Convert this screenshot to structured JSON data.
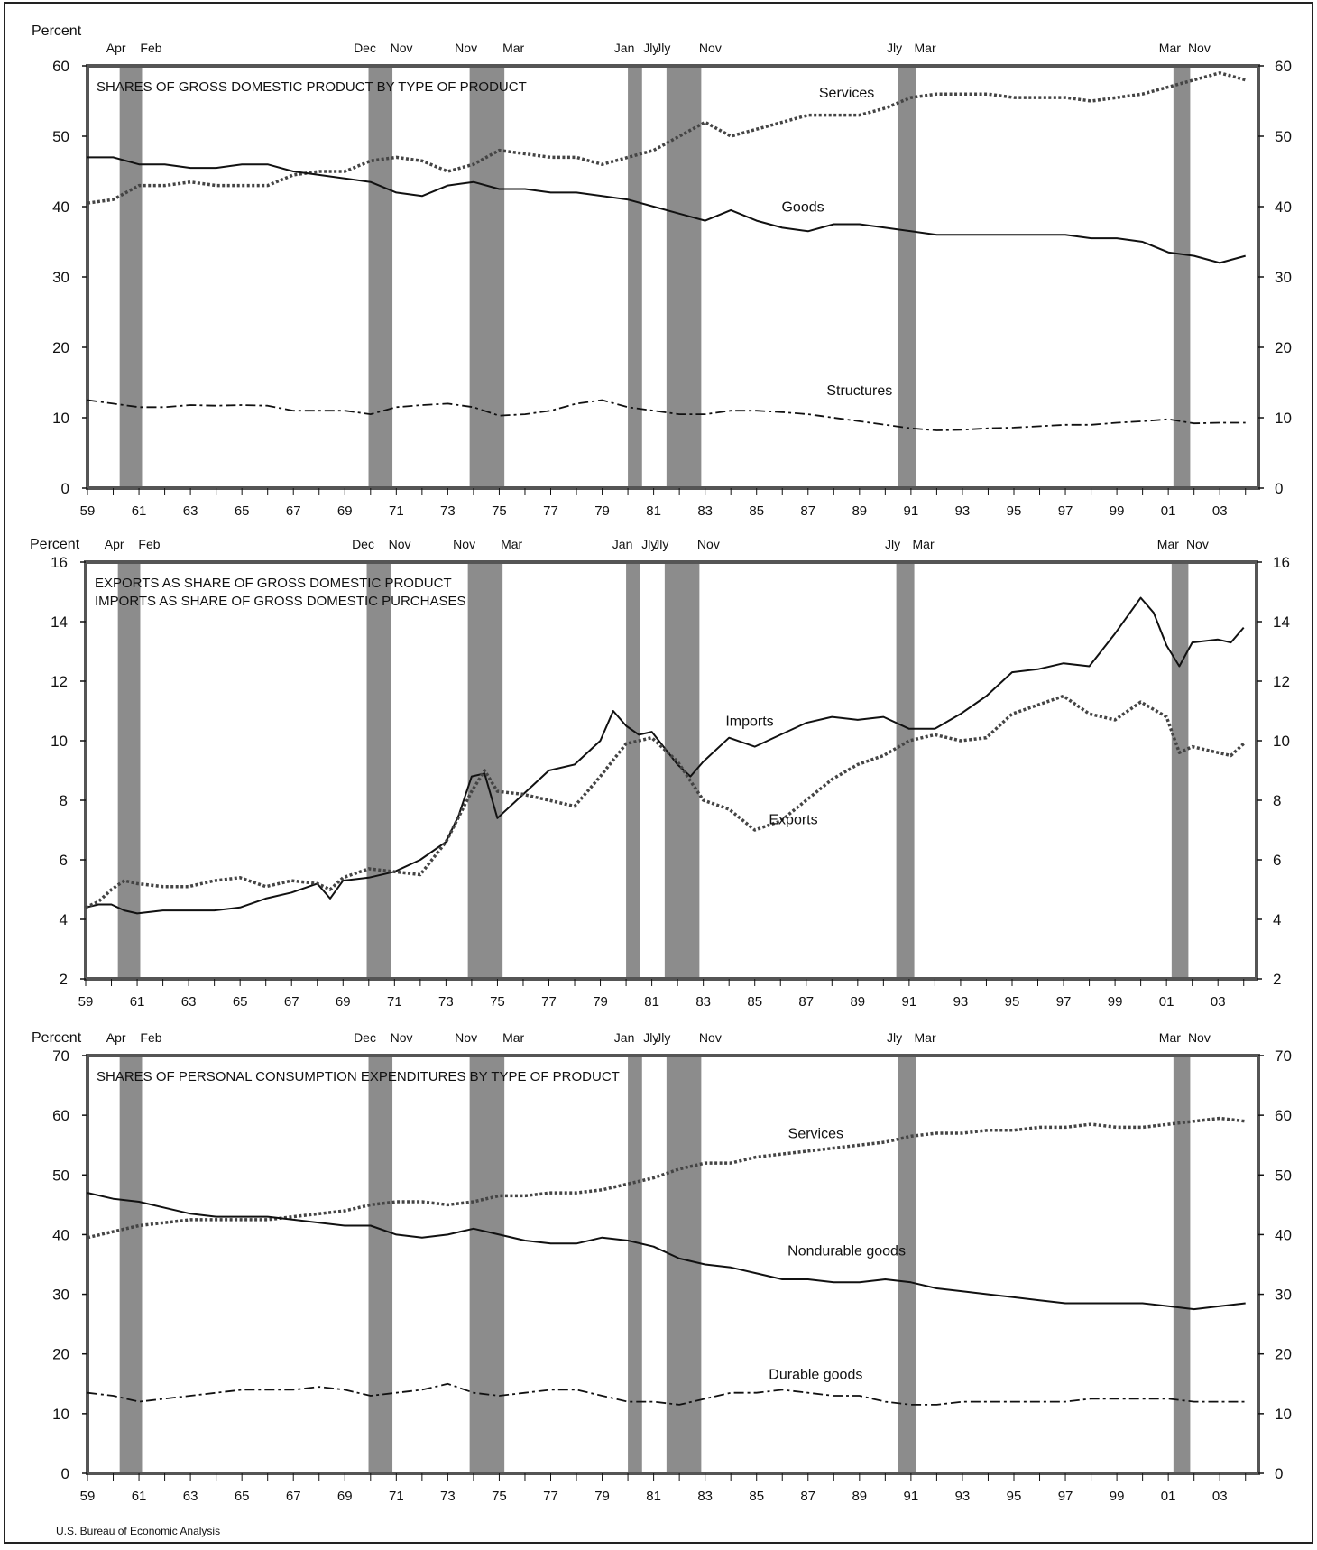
{
  "footer": {
    "source": "U.S. Bureau of Economic Analysis"
  },
  "colors": {
    "recession": "#8c8c8c",
    "frame": "#555555",
    "line": "#111111"
  },
  "recessions": [
    {
      "start": 1960.25,
      "end": 1961.12,
      "start_label": "Apr",
      "end_label": "Feb"
    },
    {
      "start": 1969.92,
      "end": 1970.85,
      "start_label": "Dec",
      "end_label": "Nov"
    },
    {
      "start": 1973.85,
      "end": 1975.2,
      "start_label": "Nov",
      "end_label": "Mar"
    },
    {
      "start": 1980.0,
      "end": 1980.55,
      "start_label": "Jan",
      "end_label": "Jly"
    },
    {
      "start": 1981.5,
      "end": 1982.85,
      "start_label": "Jly",
      "end_label": "Nov"
    },
    {
      "start": 1990.5,
      "end": 1991.2,
      "start_label": "Jly",
      "end_label": "Mar"
    },
    {
      "start": 2001.2,
      "end": 2001.85,
      "start_label": "Mar",
      "end_label": "Nov"
    }
  ],
  "chart_data": [
    {
      "type": "line",
      "title": "SHARES OF GROSS DOMESTIC PRODUCT BY TYPE OF PRODUCT",
      "ylabel": "Percent",
      "ylim": [
        0,
        60
      ],
      "yticks": [
        0,
        10,
        20,
        30,
        40,
        50,
        60
      ],
      "xlim": [
        1959,
        2004.5
      ],
      "xticks": [
        "59",
        "61",
        "63",
        "65",
        "67",
        "69",
        "71",
        "73",
        "75",
        "77",
        "79",
        "81",
        "83",
        "85",
        "87",
        "89",
        "91",
        "93",
        "95",
        "97",
        "99",
        "01",
        "03"
      ],
      "series": [
        {
          "name": "Services",
          "style": "dotted",
          "label_at": [
            1988.5,
            55.5
          ],
          "x": [
            1959,
            1960,
            1961,
            1962,
            1963,
            1964,
            1965,
            1966,
            1967,
            1968,
            1969,
            1970,
            1971,
            1972,
            1973,
            1974,
            1975,
            1976,
            1977,
            1978,
            1979,
            1980,
            1981,
            1982,
            1983,
            1984,
            1985,
            1986,
            1987,
            1988,
            1989,
            1990,
            1991,
            1992,
            1993,
            1994,
            1995,
            1996,
            1997,
            1998,
            1999,
            2000,
            2001,
            2002,
            2003,
            2004
          ],
          "values": [
            40.5,
            41,
            43,
            43,
            43.5,
            43,
            43,
            43,
            44.5,
            45,
            45,
            46.5,
            47,
            46.5,
            45,
            46,
            48,
            47.5,
            47,
            47,
            46,
            47,
            48,
            50,
            52,
            50,
            51,
            52,
            53,
            53,
            53,
            54,
            55.5,
            56,
            56,
            56,
            55.5,
            55.5,
            55.5,
            55,
            55.5,
            56,
            57,
            58,
            59,
            58
          ]
        },
        {
          "name": "Goods",
          "style": "solid",
          "label_at": [
            1986.8,
            39.3
          ],
          "x": [
            1959,
            1960,
            1961,
            1962,
            1963,
            1964,
            1965,
            1966,
            1967,
            1968,
            1969,
            1970,
            1971,
            1972,
            1973,
            1974,
            1975,
            1976,
            1977,
            1978,
            1979,
            1980,
            1981,
            1982,
            1983,
            1984,
            1985,
            1986,
            1987,
            1988,
            1989,
            1990,
            1991,
            1992,
            1993,
            1994,
            1995,
            1996,
            1997,
            1998,
            1999,
            2000,
            2001,
            2002,
            2003,
            2004
          ],
          "values": [
            47,
            47,
            46,
            46,
            45.5,
            45.5,
            46,
            46,
            45,
            44.5,
            44,
            43.5,
            42,
            41.5,
            43,
            43.5,
            42.5,
            42.5,
            42,
            42,
            41.5,
            41,
            40,
            39,
            38,
            39.5,
            38,
            37,
            36.5,
            37.5,
            37.5,
            37,
            36.5,
            36,
            36,
            36,
            36,
            36,
            36,
            35.5,
            35.5,
            35,
            33.5,
            33,
            32,
            33
          ]
        },
        {
          "name": "Structures",
          "style": "dashdot",
          "label_at": [
            1989,
            13.2
          ],
          "x": [
            1959,
            1960,
            1961,
            1962,
            1963,
            1964,
            1965,
            1966,
            1967,
            1968,
            1969,
            1970,
            1971,
            1972,
            1973,
            1974,
            1975,
            1976,
            1977,
            1978,
            1979,
            1980,
            1981,
            1982,
            1983,
            1984,
            1985,
            1986,
            1987,
            1988,
            1989,
            1990,
            1991,
            1992,
            1993,
            1994,
            1995,
            1996,
            1997,
            1998,
            1999,
            2000,
            2001,
            2002,
            2003,
            2004
          ],
          "values": [
            12.5,
            12,
            11.5,
            11.5,
            11.8,
            11.7,
            11.8,
            11.7,
            11,
            11,
            11,
            10.5,
            11.5,
            11.8,
            12,
            11.5,
            10.3,
            10.5,
            11,
            12,
            12.5,
            11.5,
            11,
            10.5,
            10.5,
            11,
            11,
            10.8,
            10.5,
            10,
            9.5,
            9,
            8.5,
            8.2,
            8.3,
            8.5,
            8.6,
            8.8,
            9,
            9,
            9.3,
            9.5,
            9.8,
            9.2,
            9.3,
            9.3
          ]
        }
      ]
    },
    {
      "type": "line",
      "title": "EXPORTS AS SHARE OF GROSS DOMESTIC PRODUCT",
      "subtitle": "IMPORTS AS SHARE OF GROSS DOMESTIC PURCHASES",
      "ylabel": "Percent",
      "ylim": [
        2,
        16
      ],
      "yticks": [
        2,
        4,
        6,
        8,
        10,
        12,
        14,
        16
      ],
      "xlim": [
        1959,
        2004.5
      ],
      "xticks": [
        "59",
        "61",
        "63",
        "65",
        "67",
        "69",
        "71",
        "73",
        "75",
        "77",
        "79",
        "81",
        "83",
        "85",
        "87",
        "89",
        "91",
        "93",
        "95",
        "97",
        "99",
        "01",
        "03"
      ],
      "series": [
        {
          "name": "Imports",
          "style": "solid",
          "label_at": [
            1984.8,
            10.5
          ],
          "x": [
            1959,
            1959.5,
            1960,
            1960.5,
            1961,
            1962,
            1963,
            1964,
            1965,
            1966,
            1967,
            1968,
            1968.5,
            1969,
            1970,
            1971,
            1972,
            1973,
            1973.5,
            1974,
            1974.5,
            1975,
            1976,
            1977,
            1978,
            1979,
            1979.5,
            1980,
            1980.5,
            1981,
            1982,
            1982.5,
            1983,
            1984,
            1985,
            1986,
            1987,
            1988,
            1989,
            1990,
            1991,
            1992,
            1993,
            1994,
            1995,
            1996,
            1997,
            1998,
            1999,
            2000,
            2000.5,
            2001,
            2001.5,
            2002,
            2003,
            2003.5,
            2004
          ],
          "values": [
            4.4,
            4.5,
            4.5,
            4.3,
            4.2,
            4.3,
            4.3,
            4.3,
            4.4,
            4.7,
            4.9,
            5.2,
            4.7,
            5.3,
            5.4,
            5.6,
            6.0,
            6.6,
            7.5,
            8.8,
            8.9,
            7.4,
            8.2,
            9.0,
            9.2,
            10.0,
            11.0,
            10.5,
            10.2,
            10.3,
            9.2,
            8.8,
            9.3,
            10.1,
            9.8,
            10.2,
            10.6,
            10.8,
            10.7,
            10.8,
            10.4,
            10.4,
            10.9,
            11.5,
            12.3,
            12.4,
            12.6,
            12.5,
            13.6,
            14.8,
            14.3,
            13.2,
            12.5,
            13.3,
            13.4,
            13.3,
            13.8
          ]
        },
        {
          "name": "Exports",
          "style": "dotted",
          "label_at": [
            1986.5,
            7.2
          ],
          "x": [
            1959,
            1959.5,
            1960,
            1960.5,
            1961,
            1962,
            1963,
            1964,
            1965,
            1966,
            1967,
            1968,
            1968.5,
            1969,
            1970,
            1971,
            1972,
            1973,
            1974,
            1974.5,
            1975,
            1976,
            1977,
            1978,
            1979,
            1980,
            1981,
            1982,
            1983,
            1984,
            1985,
            1986,
            1987,
            1988,
            1989,
            1990,
            1991,
            1992,
            1993,
            1994,
            1995,
            1996,
            1997,
            1998,
            1999,
            2000,
            2001,
            2001.5,
            2002,
            2003,
            2003.5,
            2004
          ],
          "values": [
            4.4,
            4.6,
            5.0,
            5.3,
            5.2,
            5.1,
            5.1,
            5.3,
            5.4,
            5.1,
            5.3,
            5.2,
            5.0,
            5.4,
            5.7,
            5.6,
            5.5,
            6.6,
            8.3,
            9.0,
            8.3,
            8.2,
            8.0,
            7.8,
            8.8,
            9.9,
            10.1,
            9.3,
            8.0,
            7.7,
            7.0,
            7.3,
            8.0,
            8.7,
            9.2,
            9.5,
            10.0,
            10.2,
            10.0,
            10.1,
            10.9,
            11.2,
            11.5,
            10.9,
            10.7,
            11.3,
            10.8,
            9.6,
            9.8,
            9.6,
            9.5,
            9.9
          ]
        }
      ]
    },
    {
      "type": "line",
      "title": "SHARES OF PERSONAL CONSUMPTION EXPENDITURES BY TYPE OF PRODUCT",
      "ylabel": "Percent",
      "ylim": [
        0,
        70
      ],
      "yticks": [
        0,
        10,
        20,
        30,
        40,
        50,
        60,
        70
      ],
      "xlim": [
        1959,
        2004.5
      ],
      "xticks": [
        "59",
        "61",
        "63",
        "65",
        "67",
        "69",
        "71",
        "73",
        "75",
        "77",
        "79",
        "81",
        "83",
        "85",
        "87",
        "89",
        "91",
        "93",
        "95",
        "97",
        "99",
        "01",
        "03"
      ],
      "series": [
        {
          "name": "Services",
          "style": "dotted",
          "label_at": [
            1987.3,
            56.2
          ],
          "x": [
            1959,
            1960,
            1961,
            1962,
            1963,
            1964,
            1965,
            1966,
            1967,
            1968,
            1969,
            1970,
            1971,
            1972,
            1973,
            1974,
            1975,
            1976,
            1977,
            1978,
            1979,
            1980,
            1981,
            1982,
            1983,
            1984,
            1985,
            1986,
            1987,
            1988,
            1989,
            1990,
            1991,
            1992,
            1993,
            1994,
            1995,
            1996,
            1997,
            1998,
            1999,
            2000,
            2001,
            2002,
            2003,
            2004
          ],
          "values": [
            39.5,
            40.5,
            41.5,
            42,
            42.5,
            42.5,
            42.5,
            42.5,
            43,
            43.5,
            44,
            45,
            45.5,
            45.5,
            45,
            45.5,
            46.5,
            46.5,
            47,
            47,
            47.5,
            48.5,
            49.5,
            51,
            52,
            52,
            53,
            53.5,
            54,
            54.5,
            55,
            55.5,
            56.5,
            57,
            57,
            57.5,
            57.5,
            58,
            58,
            58.5,
            58,
            58,
            58.5,
            59,
            59.5,
            59
          ]
        },
        {
          "name": "Nondurable goods",
          "style": "solid",
          "label_at": [
            1988.5,
            36.5
          ],
          "x": [
            1959,
            1960,
            1961,
            1962,
            1963,
            1964,
            1965,
            1966,
            1967,
            1968,
            1969,
            1970,
            1971,
            1972,
            1973,
            1974,
            1975,
            1976,
            1977,
            1978,
            1979,
            1980,
            1981,
            1982,
            1983,
            1984,
            1985,
            1986,
            1987,
            1988,
            1989,
            1990,
            1991,
            1992,
            1993,
            1994,
            1995,
            1996,
            1997,
            1998,
            1999,
            2000,
            2001,
            2002,
            2003,
            2004
          ],
          "values": [
            47,
            46,
            45.5,
            44.5,
            43.5,
            43,
            43,
            43,
            42.5,
            42,
            41.5,
            41.5,
            40,
            39.5,
            40,
            41,
            40,
            39,
            38.5,
            38.5,
            39.5,
            39,
            38,
            36,
            35,
            34.5,
            33.5,
            32.5,
            32.5,
            32,
            32,
            32.5,
            32,
            31,
            30.5,
            30,
            29.5,
            29,
            28.5,
            28.5,
            28.5,
            28.5,
            28,
            27.5,
            28,
            28.5
          ]
        },
        {
          "name": "Durable goods",
          "style": "dashdot",
          "label_at": [
            1987.3,
            15.8
          ],
          "x": [
            1959,
            1960,
            1961,
            1962,
            1963,
            1964,
            1965,
            1966,
            1967,
            1968,
            1969,
            1970,
            1971,
            1972,
            1973,
            1974,
            1975,
            1976,
            1977,
            1978,
            1979,
            1980,
            1981,
            1982,
            1983,
            1984,
            1985,
            1986,
            1987,
            1988,
            1989,
            1990,
            1991,
            1992,
            1993,
            1994,
            1995,
            1996,
            1997,
            1998,
            1999,
            2000,
            2001,
            2002,
            2003,
            2004
          ],
          "values": [
            13.5,
            13,
            12,
            12.5,
            13,
            13.5,
            14,
            14,
            14,
            14.5,
            14,
            13,
            13.5,
            14,
            15,
            13.5,
            13,
            13.5,
            14,
            14,
            13,
            12,
            12,
            11.5,
            12.5,
            13.5,
            13.5,
            14,
            13.5,
            13,
            13,
            12,
            11.5,
            11.5,
            12,
            12,
            12,
            12,
            12,
            12.5,
            12.5,
            12.5,
            12.5,
            12,
            12,
            12
          ]
        }
      ]
    }
  ]
}
